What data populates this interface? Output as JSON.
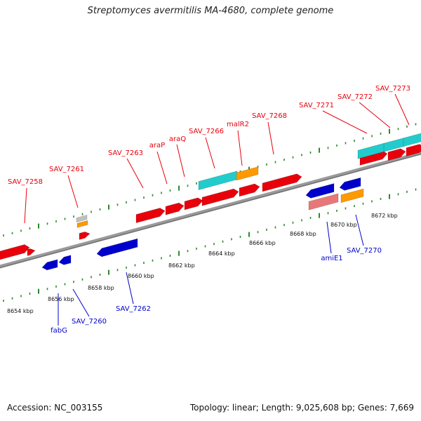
{
  "title": "Streptomyces avermitilis MA-4680, complete genome",
  "footer": {
    "accession": "Accession: NC_003155",
    "stats": "Topology: linear; Length: 9,025,608 bp; Genes: 7,669"
  },
  "scale_labels": [
    "8654 kbp",
    "8656 kbp",
    "8658 kbp",
    "8660 kbp",
    "8662 kbp",
    "8664 kbp",
    "8666 kbp",
    "8668 kbp",
    "8670 kbp",
    "8672 kbp"
  ],
  "genes_forward": [
    "SAV_7258",
    "SAV_7261",
    "SAV_7263",
    "araP",
    "araQ",
    "SAV_7266",
    "malR2",
    "SAV_7268",
    "SAV_7271",
    "SAV_7272",
    "SAV_7273"
  ],
  "genes_reverse": [
    "fabG",
    "SAV_7260",
    "SAV_7262",
    "amiE1",
    "SAV_7270"
  ],
  "colors": {
    "forward_gene": "#e8000b",
    "reverse_gene": "#0000cc",
    "backbone": "#808080",
    "tick": "#2a8a2a",
    "cyan_feature": "#22cccc",
    "orange_feature": "#ff9900",
    "pink_feature": "#e87878",
    "gray_feature": "#c0c0c0"
  }
}
